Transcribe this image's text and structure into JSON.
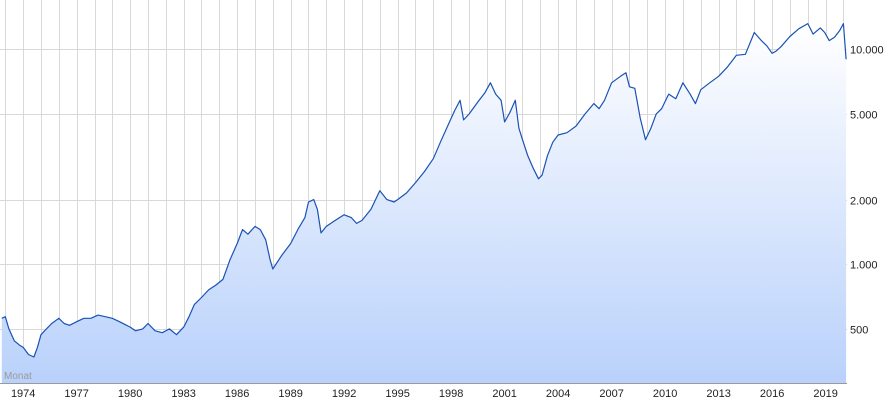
{
  "chart_data": {
    "type": "area",
    "title": "",
    "xlabel": "",
    "ylabel": "",
    "interval_label": "Monat",
    "y_scale": "log",
    "ylim": [
      280,
      17000
    ],
    "xlim": [
      1972.7,
      2020.2
    ],
    "grid": true,
    "y_ticks": [
      {
        "value": 500,
        "label": "500"
      },
      {
        "value": 1000,
        "label": "1.000"
      },
      {
        "value": 2000,
        "label": "2.000"
      },
      {
        "value": 5000,
        "label": "5.000"
      },
      {
        "value": 10000,
        "label": "10.000"
      }
    ],
    "x_ticks": [
      {
        "value": 1974,
        "label": "1974"
      },
      {
        "value": 1977,
        "label": "1977"
      },
      {
        "value": 1980,
        "label": "1980"
      },
      {
        "value": 1983,
        "label": "1983"
      },
      {
        "value": 1986,
        "label": "1986"
      },
      {
        "value": 1989,
        "label": "1989"
      },
      {
        "value": 1992,
        "label": "1992"
      },
      {
        "value": 1995,
        "label": "1995"
      },
      {
        "value": 1998,
        "label": "1998"
      },
      {
        "value": 2001,
        "label": "2001"
      },
      {
        "value": 2004,
        "label": "2004"
      },
      {
        "value": 2007,
        "label": "2007"
      },
      {
        "value": 2010,
        "label": "2010"
      },
      {
        "value": 2013,
        "label": "2013"
      },
      {
        "value": 2016,
        "label": "2016"
      },
      {
        "value": 2019,
        "label": "2019"
      }
    ],
    "series": [
      {
        "x": [
          1972.8,
          1973.0,
          1973.2,
          1973.5,
          1973.8,
          1974.0,
          1974.3,
          1974.6,
          1974.8,
          1975.0,
          1975.3,
          1975.6,
          1976.0,
          1976.3,
          1976.6,
          1977.0,
          1977.4,
          1977.8,
          1978.2,
          1978.6,
          1979.0,
          1979.4,
          1979.8,
          1980.0,
          1980.3,
          1980.7,
          1981.0,
          1981.4,
          1981.8,
          1982.2,
          1982.6,
          1982.8,
          1983.0,
          1983.3,
          1983.6,
          1984.0,
          1984.4,
          1984.8,
          1985.2,
          1985.6,
          1986.0,
          1986.3,
          1986.6,
          1987.0,
          1987.3,
          1987.6,
          1987.85,
          1988.0,
          1988.5,
          1989.0,
          1989.4,
          1989.8,
          1990.0,
          1990.3,
          1990.5,
          1990.7,
          1991.0,
          1991.5,
          1992.0,
          1992.4,
          1992.7,
          1993.0,
          1993.5,
          1994.0,
          1994.4,
          1994.8,
          1995.0,
          1995.5,
          1996.0,
          1996.5,
          1997.0,
          1997.4,
          1997.8,
          1998.2,
          1998.5,
          1998.7,
          1999.0,
          1999.5,
          1999.9,
          2000.2,
          2000.5,
          2000.8,
          2001.0,
          2001.3,
          2001.6,
          2001.8,
          2002.0,
          2002.3,
          2002.6,
          2002.9,
          2003.1,
          2003.4,
          2003.7,
          2004.0,
          2004.5,
          2005.0,
          2005.5,
          2006.0,
          2006.3,
          2006.6,
          2007.0,
          2007.5,
          2007.8,
          2008.0,
          2008.3,
          2008.6,
          2008.9,
          2009.2,
          2009.5,
          2009.8,
          2010.2,
          2010.6,
          2011.0,
          2011.4,
          2011.7,
          2012.0,
          2012.5,
          2013.0,
          2013.5,
          2014.0,
          2014.5,
          2015.0,
          2015.4,
          2015.7,
          2016.0,
          2016.2,
          2016.5,
          2017.0,
          2017.5,
          2018.0,
          2018.3,
          2018.7,
          2018.95,
          2019.2,
          2019.5,
          2019.8,
          2020.0,
          2020.15
        ],
        "values": [
          560,
          570,
          500,
          440,
          420,
          410,
          380,
          370,
          410,
          470,
          500,
          530,
          560,
          530,
          520,
          540,
          560,
          560,
          580,
          570,
          560,
          540,
          520,
          510,
          490,
          500,
          530,
          490,
          480,
          500,
          470,
          490,
          510,
          570,
          650,
          700,
          760,
          800,
          850,
          1050,
          1250,
          1450,
          1380,
          1500,
          1450,
          1300,
          1050,
          950,
          1100,
          1250,
          1450,
          1650,
          1950,
          2000,
          1800,
          1400,
          1500,
          1600,
          1700,
          1650,
          1550,
          1600,
          1800,
          2200,
          2000,
          1950,
          2000,
          2150,
          2400,
          2700,
          3100,
          3700,
          4400,
          5200,
          5800,
          4700,
          5000,
          5700,
          6300,
          7000,
          6200,
          5800,
          4600,
          5100,
          5800,
          4300,
          3800,
          3200,
          2800,
          2500,
          2600,
          3200,
          3700,
          4000,
          4100,
          4400,
          5000,
          5600,
          5300,
          5800,
          7000,
          7500,
          7800,
          6700,
          6600,
          4800,
          3800,
          4300,
          5000,
          5300,
          6200,
          5900,
          7000,
          6200,
          5600,
          6500,
          7000,
          7500,
          8300,
          9400,
          9500,
          12000,
          11000,
          10400,
          9600,
          9800,
          10300,
          11500,
          12500,
          13200,
          11800,
          12600,
          12000,
          11000,
          11400,
          12300,
          13200,
          9000
        ]
      }
    ]
  }
}
